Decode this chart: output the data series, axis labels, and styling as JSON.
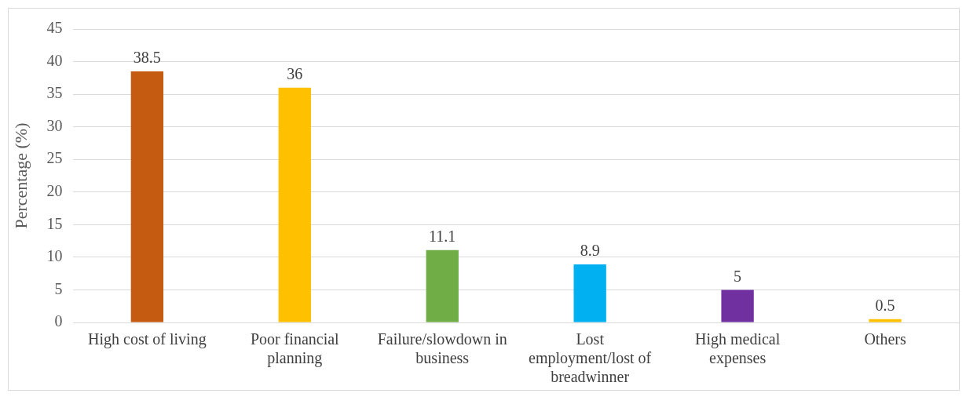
{
  "chart_data": {
    "type": "bar",
    "ylabel": "Percentage (%)",
    "categories": [
      "High cost of living",
      "Poor financial planning",
      "Failure/slowdown in business",
      "Lost employment/lost of breadwinner",
      "High medical expenses",
      "Others"
    ],
    "values": [
      38.5,
      36,
      11.1,
      8.9,
      5,
      0.5
    ],
    "colors": [
      "#c55a11",
      "#ffc000",
      "#70ad47",
      "#00b0f0",
      "#7030a0",
      "#ffc000"
    ],
    "ylim": [
      0,
      45
    ],
    "yticks": [
      0,
      5,
      10,
      15,
      20,
      25,
      30,
      35,
      40,
      45
    ],
    "grid": "y",
    "data_labels": true,
    "legend": false
  }
}
